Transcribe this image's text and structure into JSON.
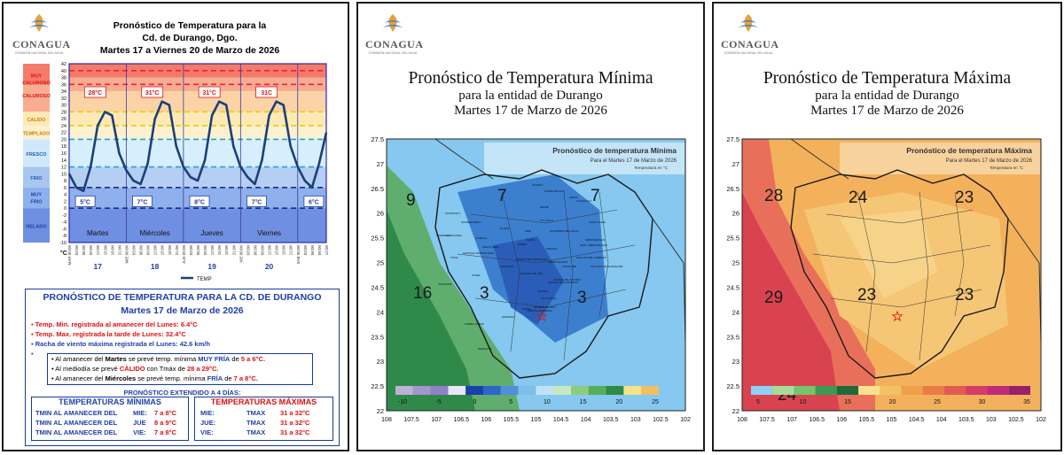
{
  "logo": {
    "name": "CONAGUA",
    "subtitle": "COMISIÓN NACIONAL DEL AGUA"
  },
  "panel1": {
    "title_line1": "Pronóstico  de Temperatura para la",
    "title_line2": "Cd. de Durango, Dgo.",
    "title_line3": "Martes 17 a Viernes 20 de Marzo de 2026",
    "bands": [
      "MUY CALUROSO",
      "CALUROSO",
      "CALIDO",
      "TEMPLADO",
      "FRESCO",
      "FRIO",
      "MUY FRIO",
      "HELADO"
    ],
    "y_ticks": [
      "42",
      "40",
      "38",
      "36",
      "34",
      "32",
      "30",
      "28",
      "26",
      "24",
      "22",
      "20",
      "18",
      "16",
      "14",
      "12",
      "10",
      "8",
      "6",
      "4",
      "2",
      "0",
      "-2",
      "-4",
      "-6",
      "-8",
      "-10"
    ],
    "x_time_labels": [
      "00:00",
      "03:00",
      "06:00",
      "09:00",
      "12:00",
      "15:00",
      "18:00",
      "21:00"
    ],
    "x_day_prefixes": [
      "MAR",
      "MIE",
      "JUE",
      "VIE",
      "SAB"
    ],
    "y_unit": "°C",
    "days": [
      "Martes",
      "Miércoles",
      "Jueves",
      "Viernes"
    ],
    "day_numbers": [
      "17",
      "18",
      "19",
      "20"
    ],
    "max_labels": [
      "28°C",
      "31°C",
      "31°C",
      "31C"
    ],
    "min_labels": [
      "5°C",
      "7°C",
      "8°C",
      "7°C",
      "6°C"
    ],
    "legend": "TEMP",
    "chart_data": {
      "type": "line",
      "title": "Pronóstico de Temperatura para la Cd. de Durango, Dgo.",
      "ylabel": "°C",
      "ylim": [
        -10,
        42
      ],
      "x_hours": [
        0,
        3,
        6,
        9,
        12,
        15,
        18,
        21,
        24,
        27,
        30,
        33,
        36,
        39,
        42,
        45,
        48,
        51,
        54,
        57,
        60,
        63,
        66,
        69,
        72,
        75,
        78,
        81,
        84,
        87,
        90,
        93,
        96,
        99,
        102,
        105,
        108
      ],
      "series": [
        {
          "name": "TEMP",
          "values": [
            10,
            6,
            5,
            12,
            24,
            28,
            27,
            16,
            11,
            8,
            7,
            13,
            26,
            31,
            30,
            18,
            12,
            9,
            8,
            14,
            27,
            31,
            30,
            18,
            12,
            9,
            7,
            14,
            27,
            31,
            30,
            18,
            12,
            8,
            6,
            13,
            22
          ]
        }
      ]
    }
  },
  "info": {
    "title": "PRONÓSTICO DE TEMPERATURA PARA LA CD. DE DURANGO",
    "date": "Martes 17 de Marzo de 2026",
    "b1_a": "Temp. Min. registrada al amanecer del ",
    "b1_b": "Lunes",
    "b1_c": ": 6.4°C",
    "b2_a": "Temp. Max.",
    "b2_b": " registrada la tarde de ",
    "b2_c": "Lunes",
    "b2_d": ": 32.4°C",
    "b3_a": "Racha de viento máxima registrada el ",
    "b3_b": "Lunes",
    "b3_c": ": 42.6 km/h",
    "l1_a": "Al amanecer del ",
    "l1_b": "Martes",
    "l1_c": " se prevé temp. mínima ",
    "l1_d": "MUY FRÍA",
    "l1_e": " de ",
    "l1_f": "5 a 6°C.",
    "l2_a": "Al mediodía se prevé ",
    "l2_b": "CÁLIDO",
    "l2_c": " con Tmáx de ",
    "l2_d": "28 a 29°C.",
    "l3_a": "Al amanecer del ",
    "l3_b": "Miércoles",
    "l3_c": " se prevé temp. mínima ",
    "l3_d": "FRÍA",
    "l3_e": " de ",
    "l3_f": "7 a 8°C.",
    "extended": "PRONÓSTICO EXTENDIDO A 4 DÍAS:",
    "min_title": "TEMPERATURAS MÍNIMAS",
    "max_title": "TEMPERATURAS MÁXIMAS",
    "min_rows": [
      {
        "label": "TMIN AL AMANECER DEL",
        "day": "MIE:",
        "val": "7 a 8°C"
      },
      {
        "label": "TMIN AL AMANECER DEL",
        "day": "JUE",
        "val": "8 a 9°C"
      },
      {
        "label": "TMIN AL AMANECER DEL",
        "day": "VIE:",
        "val": "7 a 8°C"
      }
    ],
    "max_rows": [
      {
        "day": "MIE:",
        "label": "TMAX",
        "val": "31 a 32°C"
      },
      {
        "day": "JUE:",
        "label": "TMAX",
        "val": "31 a 32°C"
      },
      {
        "day": "VIE:",
        "label": "TMAX",
        "val": "31 a 32°C"
      }
    ]
  },
  "panel2": {
    "title": "Pronóstico de Temperatura Mínima",
    "sub1": "para la entidad de Durango",
    "sub2": "Martes 17 de Marzo de 2026",
    "map_title": "Pronóstico de temperatura Mínima",
    "map_sub": "Para el Martes 17 de Marzo de 2026",
    "map_unit": "Temperatura en °C",
    "y_ticks": [
      "27.5",
      "27",
      "26.5",
      "26",
      "25.5",
      "25",
      "24.5",
      "24",
      "23.5",
      "23",
      "22.5",
      "22"
    ],
    "x_ticks": [
      "108",
      "107.5",
      "107",
      "106.5",
      "106",
      "105.5",
      "105",
      "104.5",
      "104",
      "103.5",
      "103",
      "102.5",
      "102"
    ],
    "legend_ticks": [
      "-10",
      "-5",
      "0",
      "5",
      "10",
      "15",
      "20",
      "25"
    ],
    "contour_labels": [
      "9",
      "7",
      "7",
      "3",
      "3",
      "16"
    ],
    "municipalities": [
      "GUANACEVÍ",
      "TEPEHUANES",
      "SANTIAGO PAPASQUIARO",
      "SAN DIMAS",
      "PUEBLO NUEVO",
      "MEZQUITAL",
      "DURANGO",
      "GÓMEZ PALACIO",
      "LERDO",
      "EL ORO",
      "INDE",
      "S.P. GALLO",
      "MAPIMÍ",
      "TLAHUALILO",
      "HIDALGO",
      "CANATLÁN",
      "POANAS",
      "OCAMPO",
      "SÚCHIL",
      "NOMBRE DE DIOS",
      "VICENTE GUERRERO",
      "NUEVO IDEAL",
      "CONETO DE COMONFORT",
      "RODEO",
      "NAZAS",
      "CUENCAMÉ",
      "PEÑÓN BLANCO",
      "GUADALUPE VICTORIA",
      "PÁNUCO DE CORONADO",
      "SAN JUAN DEL RÍO",
      "TOPIA",
      "TAMAZULA",
      "CANELAS",
      "SAN BERNARDO",
      "OTÁEZ",
      "SAN LUIS DEL CORDERO",
      "SANTA CLARA",
      "SIMÓN BOLÍVAR",
      "SAN JUAN DE GUADALUPE",
      "GRAL. SIMÓN BOLÍVAR",
      "SAN PEDRO DEL GALLO",
      "VILLA UNIÓN"
    ]
  },
  "panel3": {
    "title": "Pronóstico de Temperatura Máxima",
    "sub1": "para la entidad de Durango",
    "sub2": "Martes 17 de Marzo de 2026",
    "map_title": "Pronóstico de temperatura Máxima",
    "map_sub": "Para el Martes 17 de Marzo de 2026",
    "map_unit": "Temperatura en °C",
    "y_ticks": [
      "27.5",
      "27",
      "26.5",
      "26",
      "25.5",
      "25",
      "24.5",
      "24",
      "23.5",
      "23",
      "22.5",
      "22"
    ],
    "x_ticks": [
      "108",
      "107.5",
      "107",
      "106.5",
      "106",
      "105.5",
      "105",
      "104.5",
      "104",
      "103.5",
      "103",
      "102.5",
      "102"
    ],
    "legend_ticks": [
      "5",
      "10",
      "15",
      "20",
      "25",
      "30",
      "35"
    ],
    "contour_labels": [
      "28",
      "24",
      "23",
      "29",
      "23",
      "23",
      "24"
    ]
  },
  "colors": {
    "blue_title": "#1f3fa8",
    "red": "#e01010"
  }
}
